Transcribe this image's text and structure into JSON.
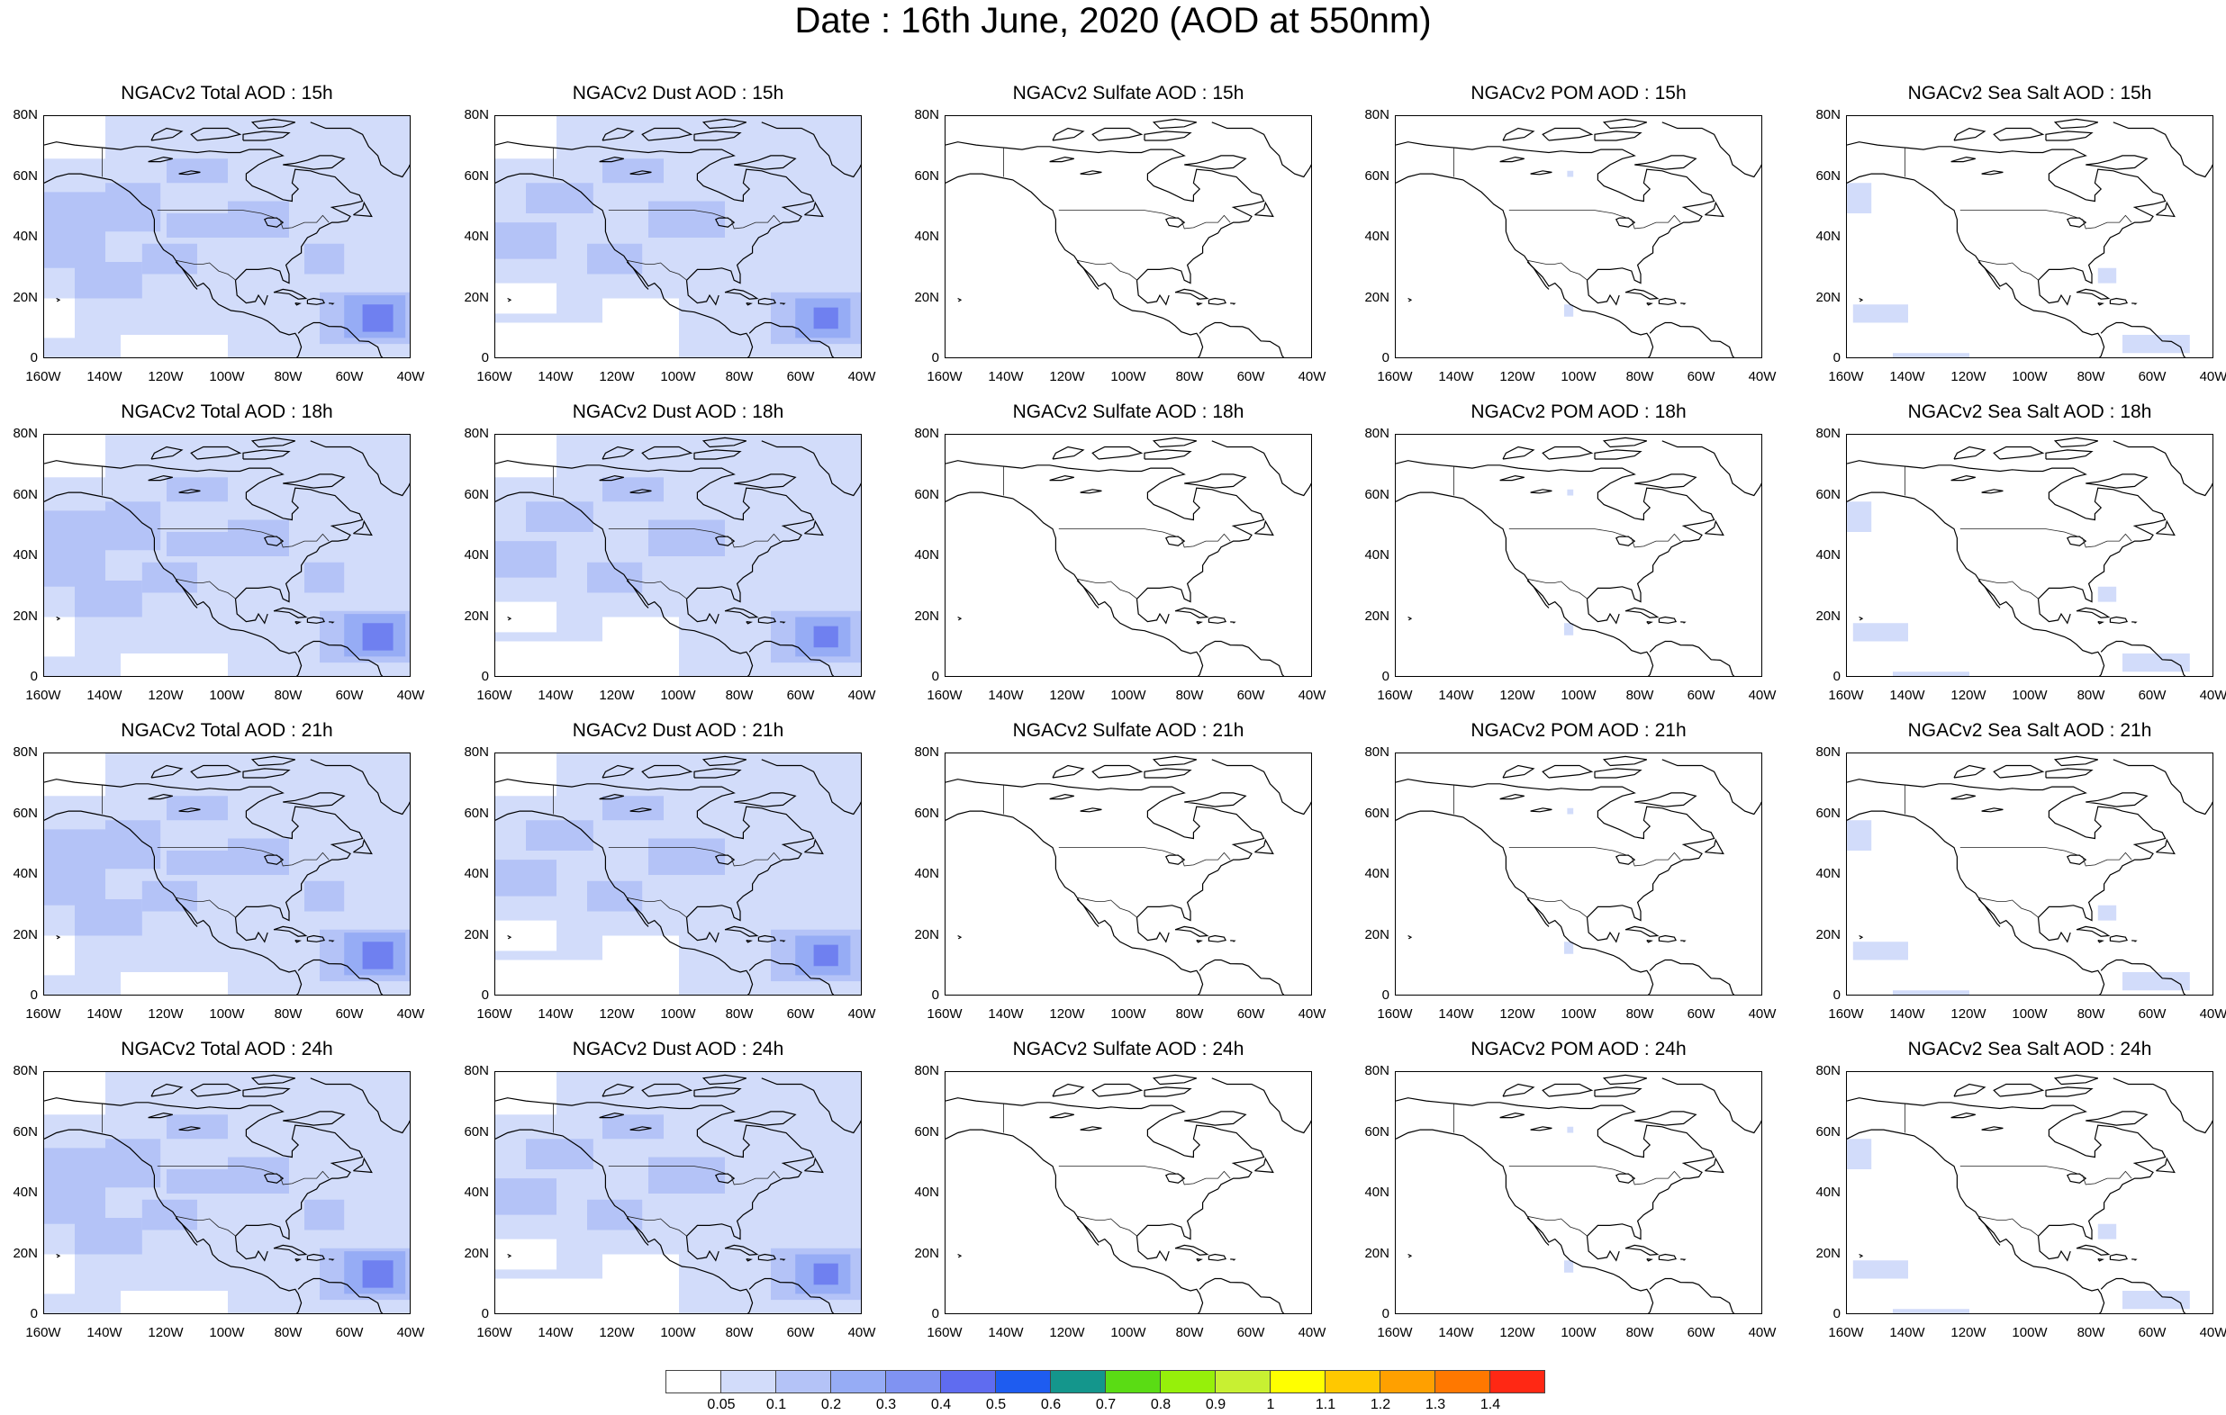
{
  "title": "Date : 16th June, 2020 (AOD at 550nm)",
  "panels": [
    [
      {
        "title": "NGACv2 Total AOD : 15h",
        "field": "total"
      },
      {
        "title": "NGACv2 Dust AOD : 15h",
        "field": "dust"
      },
      {
        "title": "NGACv2 Sulfate AOD : 15h",
        "field": "sulfate"
      },
      {
        "title": "NGACv2 POM AOD : 15h",
        "field": "pom"
      },
      {
        "title": "NGACv2 Sea Salt AOD : 15h",
        "field": "seasalt"
      }
    ],
    [
      {
        "title": "NGACv2 Total AOD : 18h",
        "field": "total"
      },
      {
        "title": "NGACv2 Dust AOD : 18h",
        "field": "dust"
      },
      {
        "title": "NGACv2 Sulfate AOD : 18h",
        "field": "sulfate"
      },
      {
        "title": "NGACv2 POM AOD : 18h",
        "field": "pom"
      },
      {
        "title": "NGACv2 Sea Salt AOD : 18h",
        "field": "seasalt"
      }
    ],
    [
      {
        "title": "NGACv2 Total AOD : 21h",
        "field": "total"
      },
      {
        "title": "NGACv2 Dust AOD : 21h",
        "field": "dust"
      },
      {
        "title": "NGACv2 Sulfate AOD : 21h",
        "field": "sulfate"
      },
      {
        "title": "NGACv2 POM AOD : 21h",
        "field": "pom"
      },
      {
        "title": "NGACv2 Sea Salt AOD : 21h",
        "field": "seasalt"
      }
    ],
    [
      {
        "title": "NGACv2 Total AOD : 24h",
        "field": "total"
      },
      {
        "title": "NGACv2 Dust AOD : 24h",
        "field": "dust"
      },
      {
        "title": "NGACv2 Sulfate AOD : 24h",
        "field": "sulfate"
      },
      {
        "title": "NGACv2 POM AOD : 24h",
        "field": "pom"
      },
      {
        "title": "NGACv2 Sea Salt  AOD : 24h",
        "field": "seasalt"
      }
    ]
  ],
  "lat_ticks": [
    "80N",
    "60N",
    "40N",
    "20N",
    "0"
  ],
  "lon_ticks": [
    "160W",
    "140W",
    "120W",
    "100W",
    "80W",
    "60W",
    "40W"
  ],
  "colorbar": {
    "colors": [
      "#ffffff",
      "#d2dcfa",
      "#b4c3f7",
      "#96acf5",
      "#8093f2",
      "#5f6cf0",
      "#1e5cf0",
      "#14968c",
      "#5adc14",
      "#96f00a",
      "#c8f032",
      "#ffff00",
      "#ffc800",
      "#ffa000",
      "#ff7800",
      "#ff2814"
    ],
    "labels": [
      "0.05",
      "0.1",
      "0.2",
      "0.3",
      "0.4",
      "0.5",
      "0.6",
      "0.7",
      "0.8",
      "0.9",
      "1",
      "1.1",
      "1.2",
      "1.3",
      "1.4"
    ]
  },
  "palette": {
    "light": "#d2dcfa",
    "medium": "#b4c3f7",
    "strong": "#96acf5",
    "deep": "#6f80f0"
  }
}
